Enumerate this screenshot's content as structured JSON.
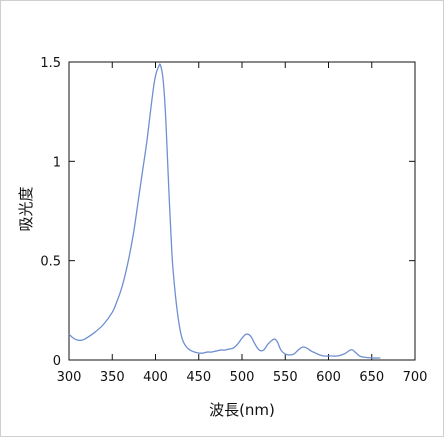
{
  "chart_data": {
    "type": "line",
    "title": "",
    "xlabel": "波長(nm)",
    "ylabel": "吸光度",
    "xlim": [
      300,
      700
    ],
    "ylim": [
      0,
      1.5
    ],
    "x_ticks": [
      300,
      350,
      400,
      450,
      500,
      550,
      600,
      650,
      700
    ],
    "x_tick_labels": [
      "300",
      "350",
      "400",
      "450",
      "500",
      "550",
      "600",
      "650",
      "700"
    ],
    "y_ticks": [
      0,
      0.5,
      1,
      1.5
    ],
    "y_tick_labels": [
      "0",
      "0.5",
      "1",
      "1.5"
    ],
    "grid": false,
    "legend": "none",
    "line_color": "#6f8fd1",
    "series": [
      {
        "x": [
          300,
          305,
          310,
          315,
          320,
          330,
          340,
          350,
          355,
          360,
          365,
          370,
          375,
          380,
          385,
          390,
          395,
          398,
          400,
          402,
          404,
          405,
          406,
          408,
          410,
          412,
          414,
          416,
          418,
          420,
          425,
          430,
          435,
          440,
          445,
          450,
          455,
          460,
          465,
          470,
          475,
          480,
          485,
          490,
          495,
          500,
          505,
          510,
          515,
          520,
          525,
          530,
          535,
          538,
          541,
          545,
          550,
          555,
          560,
          565,
          570,
          575,
          580,
          585,
          590,
          595,
          600,
          605,
          610,
          615,
          620,
          625,
          628,
          632,
          636,
          640,
          650,
          660
        ],
        "y": [
          0.13,
          0.11,
          0.1,
          0.1,
          0.11,
          0.14,
          0.18,
          0.24,
          0.29,
          0.35,
          0.43,
          0.53,
          0.65,
          0.8,
          0.95,
          1.1,
          1.28,
          1.38,
          1.43,
          1.46,
          1.48,
          1.49,
          1.48,
          1.44,
          1.35,
          1.2,
          1.0,
          0.8,
          0.62,
          0.47,
          0.25,
          0.12,
          0.07,
          0.05,
          0.04,
          0.035,
          0.035,
          0.04,
          0.04,
          0.045,
          0.05,
          0.05,
          0.055,
          0.06,
          0.08,
          0.11,
          0.13,
          0.12,
          0.08,
          0.05,
          0.05,
          0.08,
          0.1,
          0.105,
          0.09,
          0.05,
          0.03,
          0.025,
          0.03,
          0.05,
          0.065,
          0.06,
          0.045,
          0.035,
          0.025,
          0.02,
          0.02,
          0.02,
          0.02,
          0.025,
          0.035,
          0.05,
          0.05,
          0.035,
          0.02,
          0.015,
          0.01,
          0.01
        ]
      }
    ]
  }
}
